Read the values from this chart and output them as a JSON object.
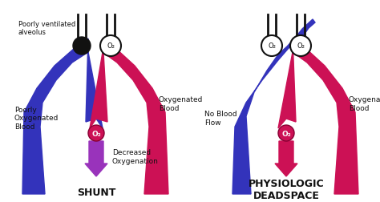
{
  "bg_color": "#ffffff",
  "title_shunt": "SHUNT",
  "title_deadspace": "PHYSIOLOGIC\nDEADSPACE",
  "label_poorly_ventilated": "Poorly ventilated\nalveolus",
  "label_poorly_oxygenated": "Poorly\nOxygenated\nBlood",
  "label_oxygenated_1": "Oxygenated\nBlood",
  "label_decreased": "Decreased\nOxygenation",
  "label_no_blood_flow": "No Blood\nFlow",
  "label_oxygenated_2": "Oxygenated\nBlood",
  "label_o2": "O₂",
  "color_blue": "#3333bb",
  "color_pink": "#cc1155",
  "color_purple": "#9933bb",
  "color_black": "#111111",
  "color_white": "#ffffff",
  "figw": 4.74,
  "figh": 2.52,
  "dpi": 100
}
